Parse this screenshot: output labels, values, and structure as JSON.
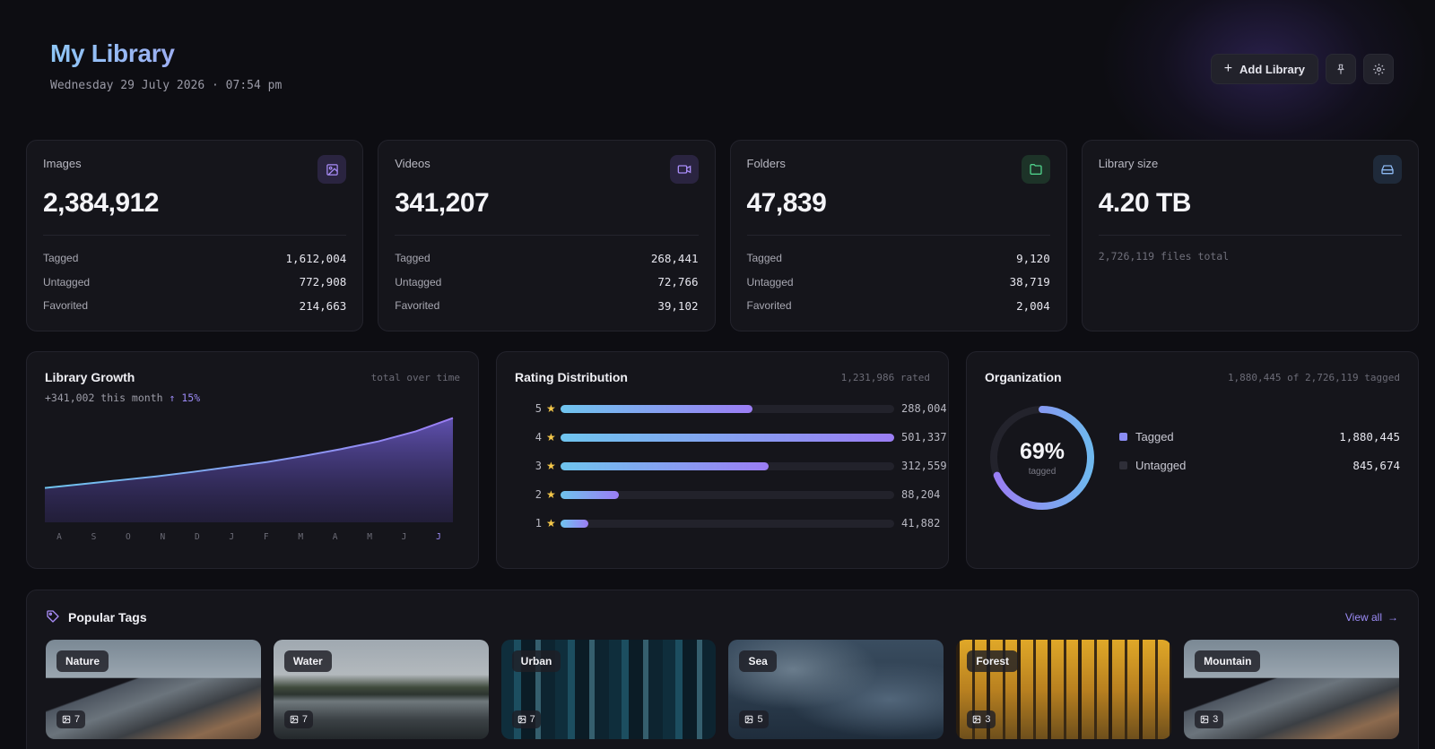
{
  "header": {
    "title": "My Library",
    "datetime": "Wednesday 29 July 2026 · 07:54 pm",
    "add_library_label": "Add Library",
    "pin_icon": "pin-icon",
    "settings_icon": "gear-icon"
  },
  "stats": [
    {
      "label": "Images",
      "value": "2,384,912",
      "icon": "image-icon",
      "icon_color": "#a88cf7",
      "rows": [
        {
          "k": "Tagged",
          "v": "1,612,004"
        },
        {
          "k": "Untagged",
          "v": "772,908"
        },
        {
          "k": "Favorited",
          "v": "214,663"
        }
      ]
    },
    {
      "label": "Videos",
      "value": "341,207",
      "icon": "video-icon",
      "icon_color": "#a88cf7",
      "rows": [
        {
          "k": "Tagged",
          "v": "268,441"
        },
        {
          "k": "Untagged",
          "v": "72,766"
        },
        {
          "k": "Favorited",
          "v": "39,102"
        }
      ]
    },
    {
      "label": "Folders",
      "value": "47,839",
      "icon": "folder-icon",
      "icon_color": "#4fd08a",
      "rows": [
        {
          "k": "Tagged",
          "v": "9,120"
        },
        {
          "k": "Untagged",
          "v": "38,719"
        },
        {
          "k": "Favorited",
          "v": "2,004"
        }
      ]
    },
    {
      "label": "Library size",
      "value": "4.20 TB",
      "icon": "drive-icon",
      "icon_color": "#8cb8f0",
      "note": "2,726,119 files total"
    }
  ],
  "growth": {
    "title": "Library Growth",
    "meta": "total over time",
    "subtitle": "+341,002 this month",
    "change": "↑ 15%"
  },
  "rating": {
    "title": "Rating Distribution",
    "meta": "1,231,986 rated"
  },
  "organization": {
    "title": "Organization",
    "meta": "1,880,445 of 2,726,119 tagged",
    "percent": "69%",
    "percent_label": "tagged",
    "fraction": 0.69,
    "legend": [
      {
        "label": "Tagged",
        "value": "1,880,445",
        "color": "#8a8cf4"
      },
      {
        "label": "Untagged",
        "value": "845,674",
        "color": "#2e2e38"
      }
    ]
  },
  "tags": {
    "title": "Popular Tags",
    "view_all": "View all",
    "items": [
      {
        "name": "Nature",
        "count": "7",
        "theme": "nature"
      },
      {
        "name": "Water",
        "count": "7",
        "theme": "water"
      },
      {
        "name": "Urban",
        "count": "7",
        "theme": "urban"
      },
      {
        "name": "Sea",
        "count": "5",
        "theme": "sea"
      },
      {
        "name": "Forest",
        "count": "3",
        "theme": "forest"
      },
      {
        "name": "Mountain",
        "count": "3",
        "theme": "mountain"
      }
    ]
  },
  "chart_data": [
    {
      "type": "area",
      "categories": [
        "A",
        "S",
        "O",
        "N",
        "D",
        "J",
        "F",
        "M",
        "A",
        "M",
        "J",
        "J"
      ],
      "values": [
        0.9,
        1.0,
        1.1,
        1.2,
        1.32,
        1.45,
        1.58,
        1.74,
        1.92,
        2.12,
        2.38,
        2.73
      ],
      "ylim": [
        0,
        3
      ],
      "highlight_last": true,
      "gradient": [
        "#6fc4ee",
        "#9b7df4"
      ]
    },
    {
      "type": "bar",
      "orientation": "horizontal",
      "categories": [
        "5",
        "4",
        "3",
        "2",
        "1"
      ],
      "values": [
        288004,
        501337,
        312559,
        88204,
        41882
      ],
      "value_labels": [
        "288,004",
        "501,337",
        "312,559",
        "88,204",
        "41,882"
      ],
      "xlim": [
        0,
        501337
      ]
    }
  ]
}
